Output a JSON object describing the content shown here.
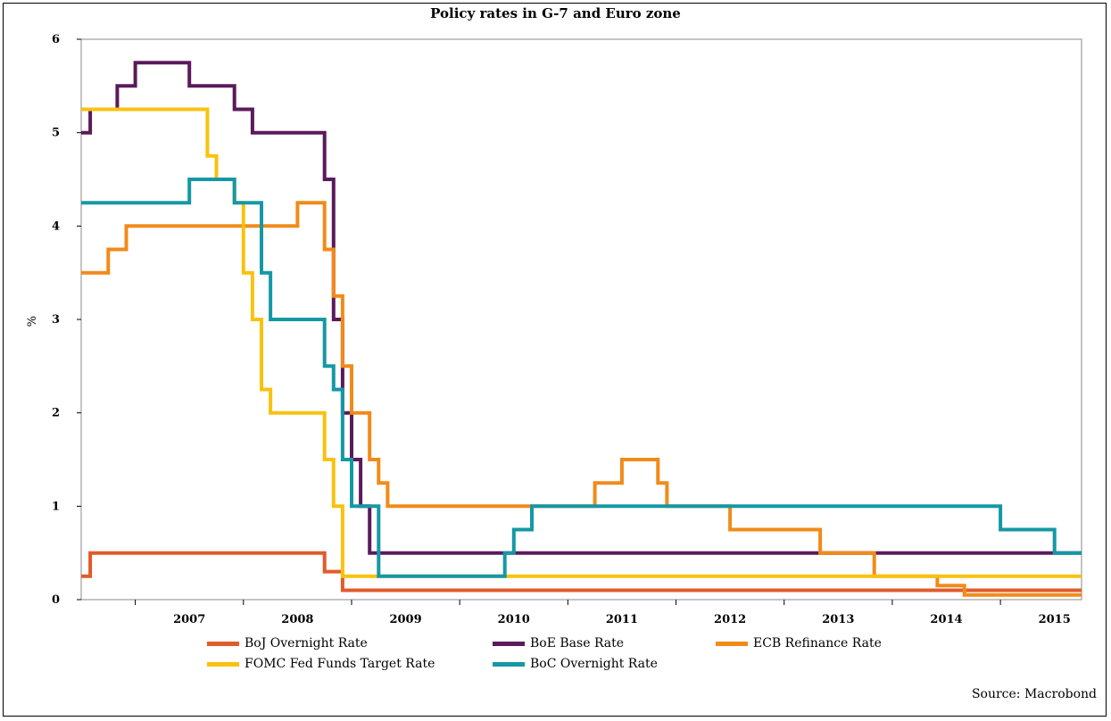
{
  "chart_data": {
    "type": "line",
    "title": "Policy rates in G-7 and Euro zone",
    "ylabel": "%",
    "xlabel": "",
    "ylim": [
      0,
      6
    ],
    "xlim": [
      "2006-07-01",
      "2015-10-01"
    ],
    "yticks": [
      "0",
      "1",
      "2",
      "3",
      "4",
      "5",
      "6"
    ],
    "xticks": [
      "2007",
      "2008",
      "2009",
      "2010",
      "2011",
      "2012",
      "2013",
      "2014",
      "2015"
    ],
    "grid": false,
    "legend_position": "bottom",
    "source": "Source: Macrobond",
    "series": [
      {
        "name": "BoJ Overnight Rate",
        "color": "#E05B2B",
        "step": true,
        "points": [
          [
            "2006-07-01",
            0.25
          ],
          [
            "2006-08-01",
            0.5
          ],
          [
            "2008-10-01",
            0.3
          ],
          [
            "2008-12-01",
            0.1
          ],
          [
            "2015-10-01",
            0.1
          ]
        ]
      },
      {
        "name": "BoE Base Rate",
        "color": "#5B1A5B",
        "step": true,
        "points": [
          [
            "2006-07-01",
            5.0
          ],
          [
            "2006-08-01",
            5.25
          ],
          [
            "2006-11-01",
            5.5
          ],
          [
            "2007-01-01",
            5.75
          ],
          [
            "2007-07-01",
            5.5
          ],
          [
            "2007-12-01",
            5.25
          ],
          [
            "2008-02-01",
            5.0
          ],
          [
            "2008-10-01",
            4.5
          ],
          [
            "2008-11-01",
            3.0
          ],
          [
            "2008-12-01",
            2.0
          ],
          [
            "2009-01-01",
            1.5
          ],
          [
            "2009-02-01",
            1.0
          ],
          [
            "2009-03-01",
            0.5
          ],
          [
            "2015-10-01",
            0.5
          ]
        ]
      },
      {
        "name": "ECB Refinance Rate",
        "color": "#F28A1A",
        "step": true,
        "points": [
          [
            "2006-07-01",
            3.5
          ],
          [
            "2006-10-01",
            3.75
          ],
          [
            "2006-12-01",
            4.0
          ],
          [
            "2008-07-01",
            4.25
          ],
          [
            "2008-10-01",
            3.75
          ],
          [
            "2008-11-01",
            3.25
          ],
          [
            "2008-12-01",
            2.5
          ],
          [
            "2009-01-01",
            2.0
          ],
          [
            "2009-03-01",
            1.5
          ],
          [
            "2009-04-01",
            1.25
          ],
          [
            "2009-05-01",
            1.0
          ],
          [
            "2011-04-01",
            1.25
          ],
          [
            "2011-07-01",
            1.5
          ],
          [
            "2011-11-01",
            1.25
          ],
          [
            "2011-12-01",
            1.0
          ],
          [
            "2012-07-01",
            0.75
          ],
          [
            "2013-05-01",
            0.5
          ],
          [
            "2013-11-01",
            0.25
          ],
          [
            "2014-06-01",
            0.15
          ],
          [
            "2014-09-01",
            0.05
          ],
          [
            "2015-10-01",
            0.05
          ]
        ]
      },
      {
        "name": "FOMC Fed Funds Target Rate",
        "color": "#F8C20F",
        "step": true,
        "points": [
          [
            "2006-07-01",
            5.25
          ],
          [
            "2007-09-01",
            4.75
          ],
          [
            "2007-10-01",
            4.5
          ],
          [
            "2007-12-01",
            4.25
          ],
          [
            "2008-01-01",
            3.5
          ],
          [
            "2008-02-01",
            3.0
          ],
          [
            "2008-03-01",
            2.25
          ],
          [
            "2008-04-01",
            2.0
          ],
          [
            "2008-10-01",
            1.5
          ],
          [
            "2008-11-01",
            1.0
          ],
          [
            "2008-12-01",
            0.25
          ],
          [
            "2015-10-01",
            0.25
          ]
        ]
      },
      {
        "name": "BoC Overnight Rate",
        "color": "#1598A5",
        "step": true,
        "points": [
          [
            "2006-07-01",
            4.25
          ],
          [
            "2007-07-01",
            4.5
          ],
          [
            "2007-12-01",
            4.25
          ],
          [
            "2008-03-01",
            3.5
          ],
          [
            "2008-04-01",
            3.0
          ],
          [
            "2008-10-01",
            2.5
          ],
          [
            "2008-11-01",
            2.25
          ],
          [
            "2008-12-01",
            1.5
          ],
          [
            "2009-01-01",
            1.0
          ],
          [
            "2009-04-01",
            0.25
          ],
          [
            "2010-06-01",
            0.5
          ],
          [
            "2010-07-01",
            0.75
          ],
          [
            "2010-09-01",
            1.0
          ],
          [
            "2015-01-01",
            0.75
          ],
          [
            "2015-07-01",
            0.5
          ],
          [
            "2015-10-01",
            0.5
          ]
        ]
      }
    ]
  }
}
